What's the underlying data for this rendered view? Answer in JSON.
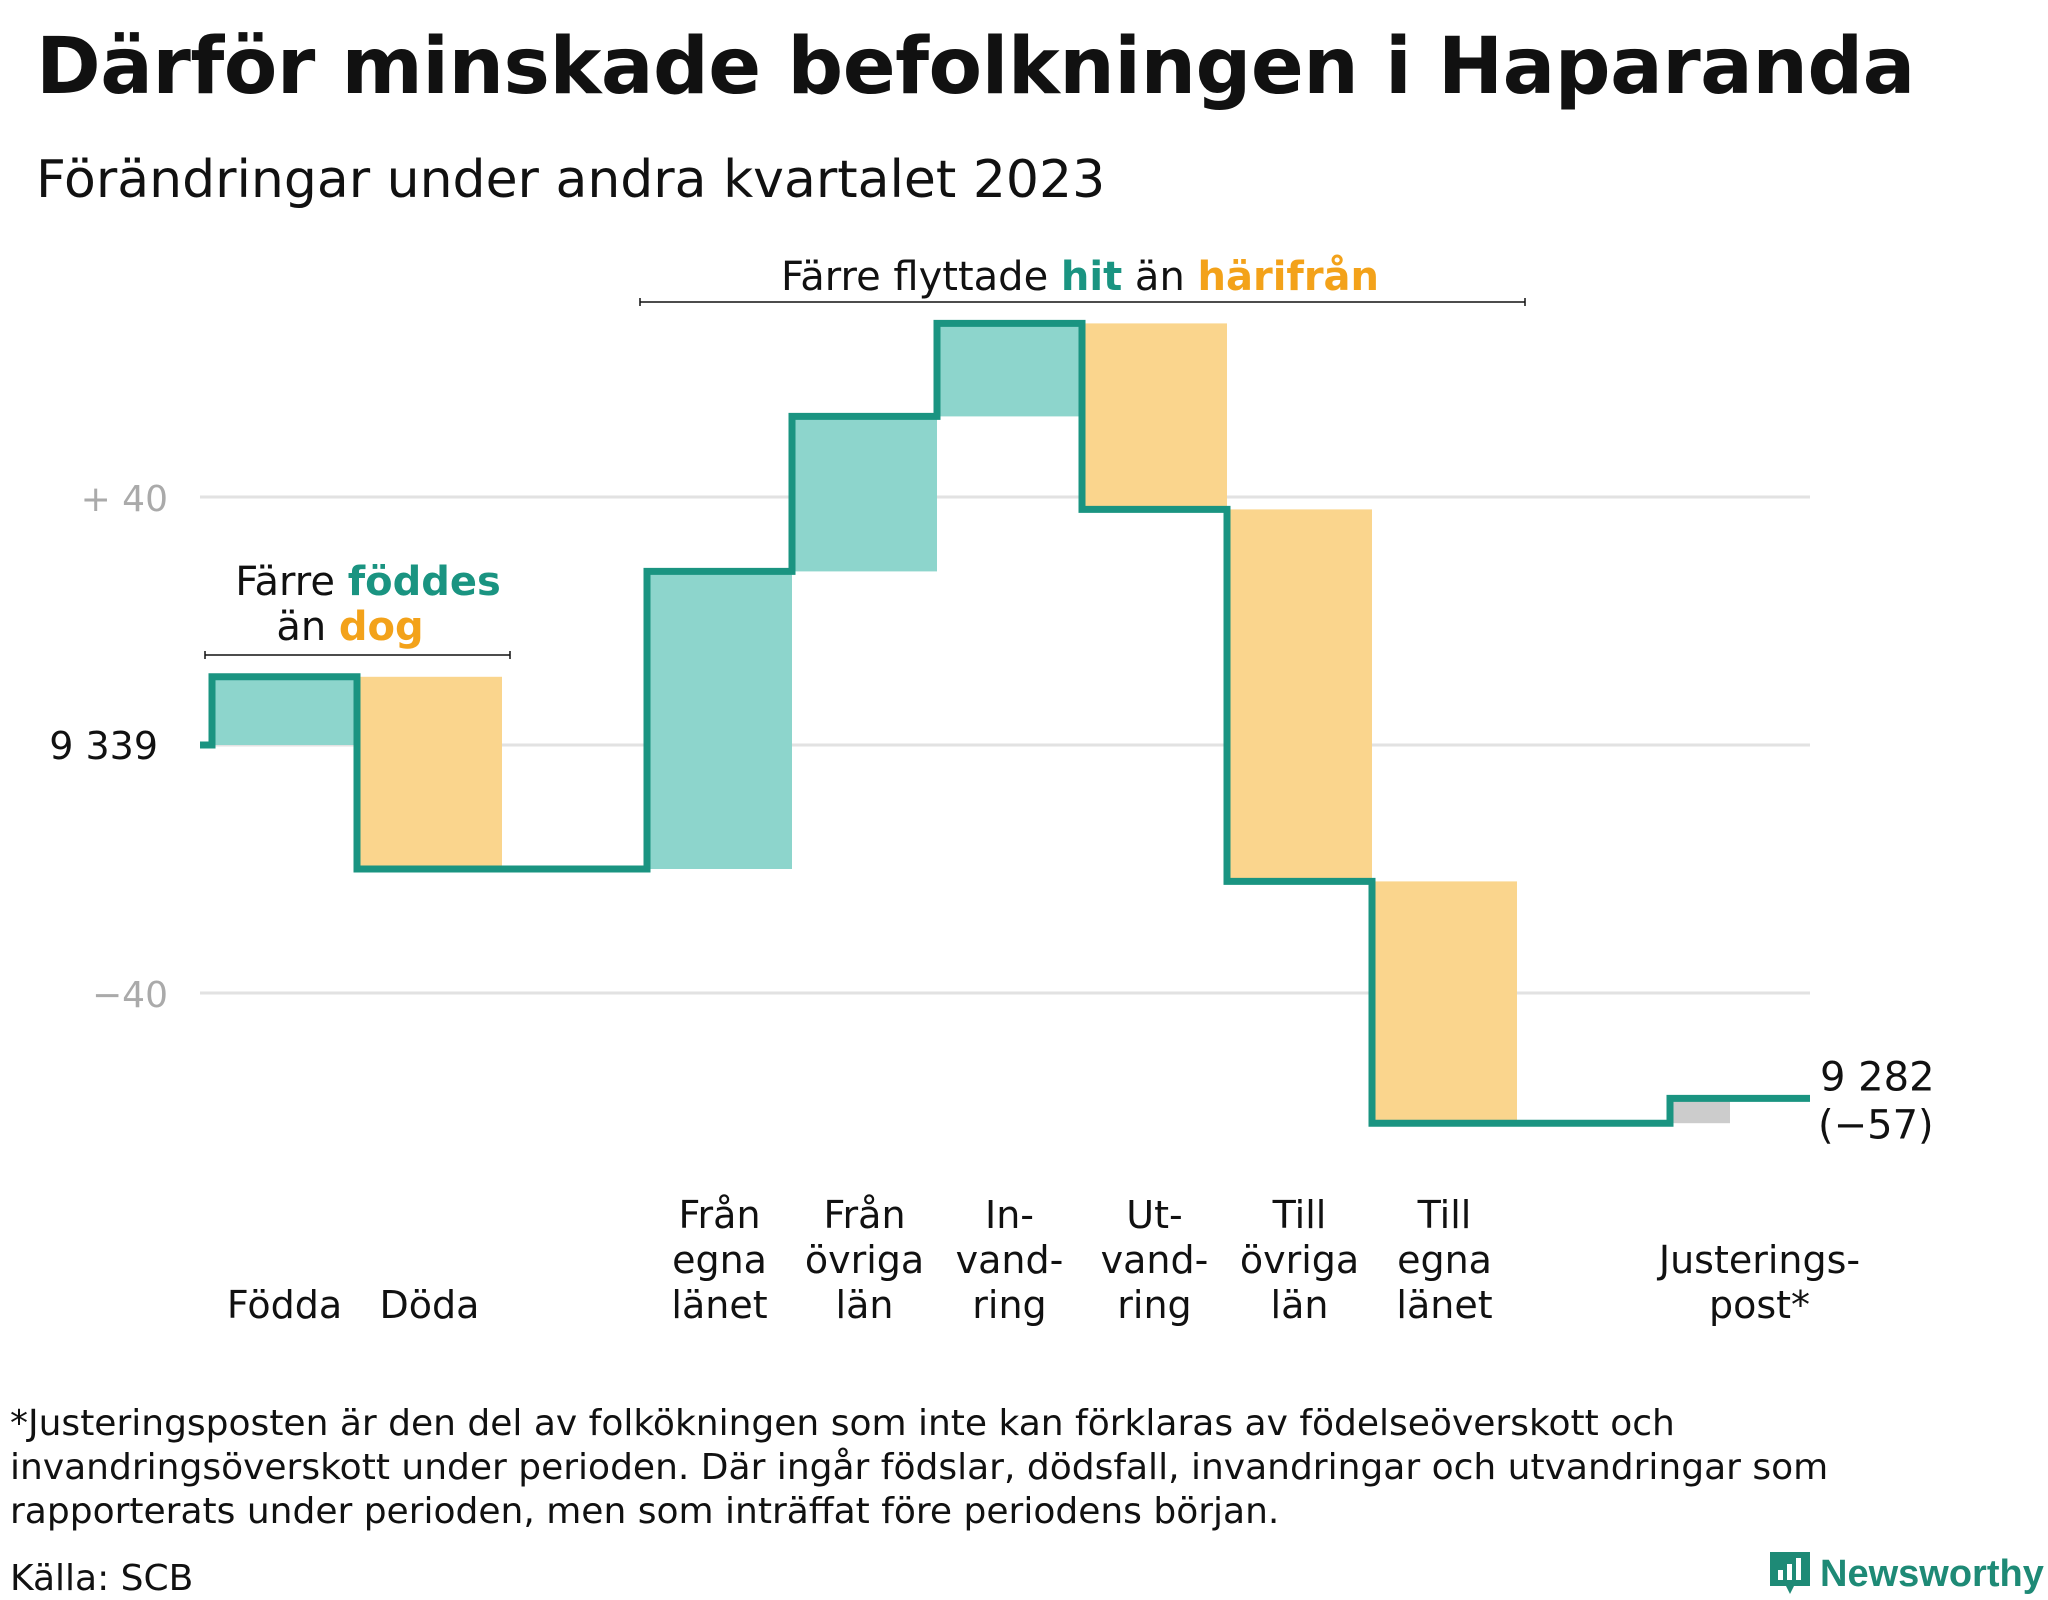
{
  "header": {
    "title": "Därför minskade befolkningen i Haparanda",
    "subtitle": "Förändringar under andra kvartalet 2023"
  },
  "colors": {
    "line": "#1a9481",
    "increase": "#8dd5cc",
    "decrease": "#fad58d",
    "adjustment": "#cccccc",
    "grid": "#e2e2e2",
    "tick_text": "#aaaaaa",
    "teal_text": "#1a9481",
    "orange_text": "#f3a21a"
  },
  "chart_data": {
    "type": "waterfall",
    "start_value": 9339,
    "start_label": "9  339",
    "end_value": 9282,
    "end_label": "9 282",
    "end_change_label": "(−57)",
    "y_ticks": [
      {
        "value": 40,
        "label": "+  40"
      },
      {
        "value": -40,
        "label": "−40"
      }
    ],
    "grid": true,
    "categories": [
      {
        "label": [
          "Födda"
        ],
        "change": 11,
        "kind": "increase"
      },
      {
        "label": [
          "Döda"
        ],
        "change": -31,
        "kind": "decrease"
      },
      {
        "label": [],
        "change": 0,
        "kind": "gap"
      },
      {
        "label": [
          "Från",
          "egna",
          "länet"
        ],
        "change": 48,
        "kind": "increase"
      },
      {
        "label": [
          "Från",
          "övriga",
          "län"
        ],
        "change": 25,
        "kind": "increase"
      },
      {
        "label": [
          "In-",
          "vand-",
          "ring"
        ],
        "change": 15,
        "kind": "increase"
      },
      {
        "label": [
          "Ut-",
          "vand-",
          "ring"
        ],
        "change": -30,
        "kind": "decrease"
      },
      {
        "label": [
          "Till",
          "övriga",
          "län"
        ],
        "change": -60,
        "kind": "decrease"
      },
      {
        "label": [
          "Till",
          "egna",
          "länet"
        ],
        "change": -39,
        "kind": "decrease"
      },
      {
        "label": [],
        "change": 0,
        "kind": "gap"
      },
      {
        "label": [
          "Justerings-",
          "post*"
        ],
        "change": 4,
        "kind": "adjustment"
      }
    ],
    "annotations": {
      "births": {
        "line1_pre": "Färre ",
        "line1_hl": "föddes",
        "line2_pre": "än ",
        "line2_hl": "dog"
      },
      "migration": {
        "pre": "Färre flyttade ",
        "hl1": "hit",
        "mid": " än ",
        "hl2": "härifrån"
      }
    }
  },
  "footer": {
    "footnote": "*Justeringsposten är den del av folkökningen som inte kan förklaras av födelseöverskott och invandringsöverskott under perioden. Där ingår födslar, dödsfall, invandringar och utvandringar som rapporterats under perioden, men som inträffat före periodens början.",
    "source": "Källa: SCB",
    "brand": "Newsworthy"
  }
}
